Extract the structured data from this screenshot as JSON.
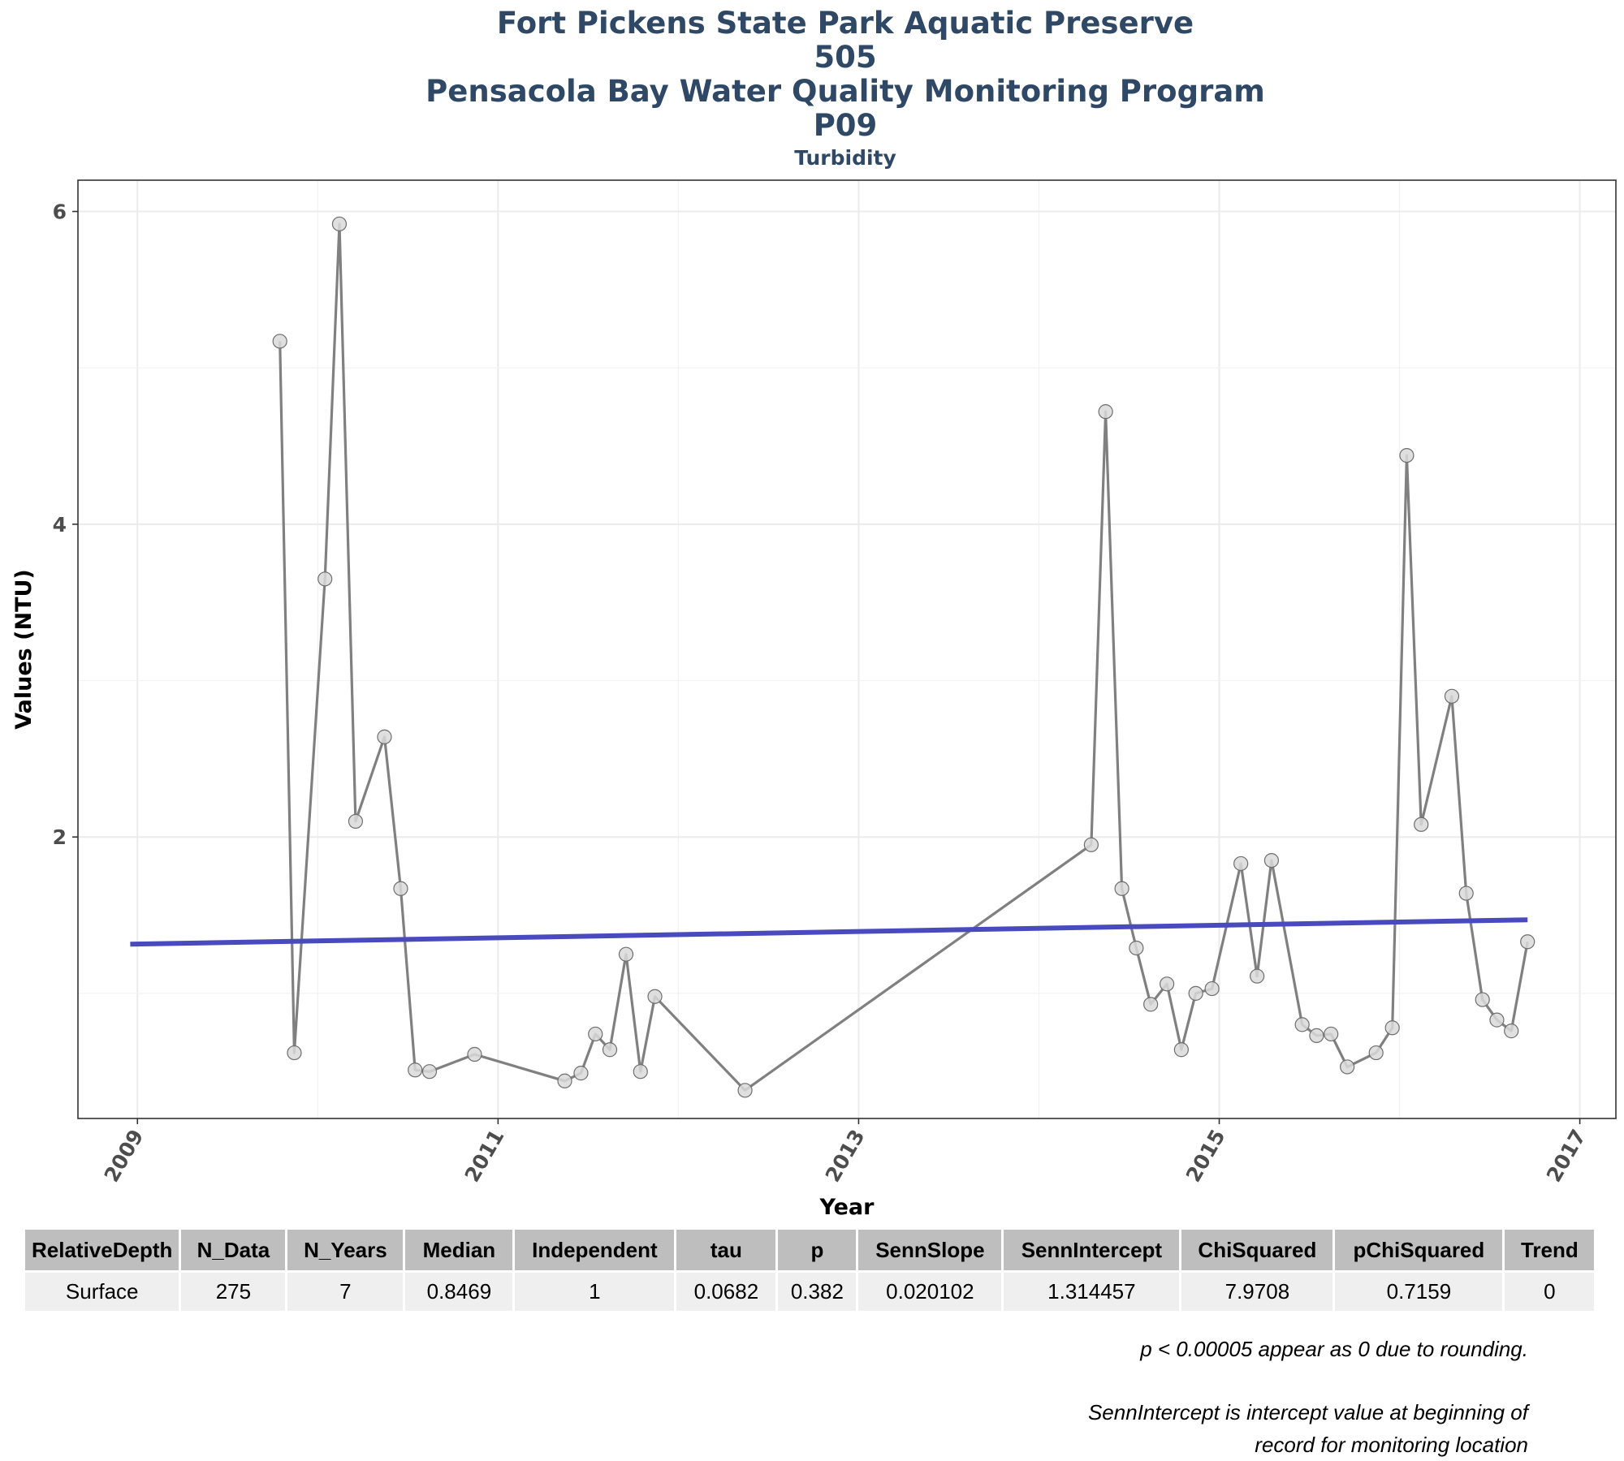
{
  "header": {
    "title_lines": [
      "Fort Pickens State Park Aquatic Preserve",
      "505",
      "Pensacola Bay Water Quality Monitoring Program",
      "P09"
    ],
    "subtitle": "Turbidity"
  },
  "chart_data": {
    "type": "line",
    "xlabel": "Year",
    "ylabel": "Values (NTU)",
    "xlim": [
      2008.67,
      2017.2
    ],
    "ylim": [
      0.2,
      6.2
    ],
    "x_ticks": [
      2009,
      2011,
      2013,
      2015,
      2017
    ],
    "y_ticks": [
      2,
      4,
      6
    ],
    "grid": true,
    "series": [
      {
        "type": "line-with-points",
        "color": "#808080",
        "point_fill": "#d9d9d9",
        "x": [
          2009.79,
          2009.87,
          2010.04,
          2010.12,
          2010.21,
          2010.37,
          2010.46,
          2010.54,
          2010.62,
          2010.87,
          2011.37,
          2011.46,
          2011.54,
          2011.62,
          2011.71,
          2011.79,
          2011.87,
          2012.37,
          2014.29,
          2014.37,
          2014.46,
          2014.54,
          2014.62,
          2014.71,
          2014.79,
          2014.87,
          2014.96,
          2015.12,
          2015.21,
          2015.29,
          2015.46,
          2015.54,
          2015.62,
          2015.71,
          2015.87,
          2015.96,
          2016.04,
          2016.12,
          2016.29,
          2016.37,
          2016.46,
          2016.54,
          2016.62,
          2016.71
        ],
        "y": [
          5.17,
          0.62,
          3.65,
          5.92,
          2.1,
          2.64,
          1.67,
          0.51,
          0.5,
          0.61,
          0.44,
          0.49,
          0.74,
          0.64,
          1.25,
          0.5,
          0.98,
          0.38,
          1.95,
          4.72,
          1.67,
          1.29,
          0.93,
          1.06,
          0.64,
          1.0,
          1.03,
          1.83,
          1.11,
          1.85,
          0.8,
          0.73,
          0.74,
          0.53,
          0.62,
          0.78,
          4.44,
          2.08,
          2.9,
          1.64,
          0.96,
          0.83,
          0.76,
          1.33
        ]
      },
      {
        "type": "trend-line",
        "color": "#4a4abf",
        "x": [
          2008.96,
          2016.71
        ],
        "y": [
          1.3145,
          1.4703
        ]
      }
    ]
  },
  "stats_table": {
    "headers": [
      "RelativeDepth",
      "N_Data",
      "N_Years",
      "Median",
      "Independent",
      "tau",
      "p",
      "SennSlope",
      "SennIntercept",
      "ChiSquared",
      "pChiSquared",
      "Trend"
    ],
    "rows": [
      [
        "Surface",
        "275",
        "7",
        "0.8469",
        "1",
        "0.0682",
        "0.382",
        "0.020102",
        "1.314457",
        "7.9708",
        "0.7159",
        "0"
      ]
    ]
  },
  "notes": {
    "line1": "p < 0.00005 appear as 0 due to rounding.",
    "line2": "SennIntercept is intercept value at beginning of",
    "line3": "record for monitoring location"
  }
}
